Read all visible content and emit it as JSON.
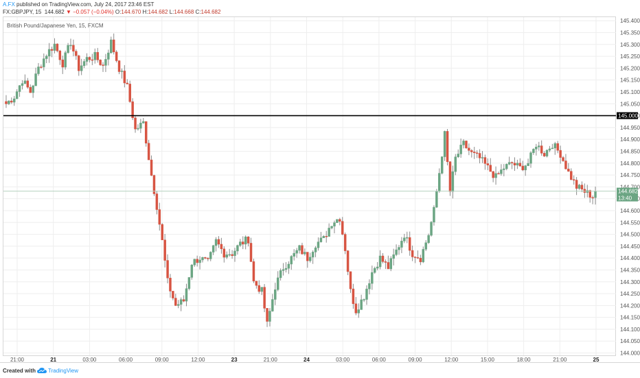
{
  "header": {
    "user": "A.FX",
    "published": "published on TradingView.com, July 24, 2017 23:46 EST",
    "symbol": "FX:GBPJPY, 15",
    "last": "144.682",
    "change": "▼ −0.057 (−0.04%)",
    "o_label": "O:",
    "o_value": "144.670",
    "h_label": "H:",
    "h_value": "144.682",
    "l_label": "L:",
    "l_value": "144.668",
    "c_label": "C:",
    "c_value": "144.682"
  },
  "chart_title": "British Pound/Japanese Yen, 15, FXCM",
  "footer": {
    "created": "Created with",
    "brand": "TradingView",
    "logo_icon": "tradingview-cloud-icon"
  },
  "colors": {
    "up": "#6ba583",
    "down": "#d75442",
    "wick": "#8a8a8a",
    "grid": "#eeeeee",
    "level_line": "#000000",
    "price_line": "#b5d1bf",
    "price_label": "#6ba583"
  },
  "chart_data": {
    "type": "candlestick",
    "symbol": "GBPJPY",
    "timeframe": "15",
    "x_tick_labels": [
      "21:00",
      "21",
      "03:00",
      "06:00",
      "09:00",
      "12:00",
      "23",
      "21:00",
      "24",
      "03:00",
      "06:00",
      "09:00",
      "12:00",
      "15:00",
      "18:00",
      "21:00",
      "25"
    ],
    "x_bold_labels": [
      "21",
      "23",
      "24",
      "25"
    ],
    "y_ticks": [
      "145.400",
      "145.350",
      "145.300",
      "145.250",
      "145.200",
      "145.150",
      "145.100",
      "145.050",
      "145.000",
      "144.950",
      "144.900",
      "144.850",
      "144.800",
      "144.750",
      "144.700",
      "144.650",
      "144.600",
      "144.550",
      "144.500",
      "144.450",
      "144.400",
      "144.350",
      "144.300",
      "144.250",
      "144.200",
      "144.150",
      "144.100",
      "144.050",
      "144.000"
    ],
    "ylim": [
      143.99,
      145.415
    ],
    "horizontal_level": {
      "value": 145.0,
      "label": "145.000"
    },
    "last_price": {
      "value": 144.682,
      "label": "144.682",
      "countdown": "13:40"
    },
    "close_path": [
      [
        0,
        145.05
      ],
      [
        3,
        145.08
      ],
      [
        6,
        145.15
      ],
      [
        9,
        145.1
      ],
      [
        12,
        145.2
      ],
      [
        15,
        145.26
      ],
      [
        18,
        145.3
      ],
      [
        21,
        145.22
      ],
      [
        24,
        145.31
      ],
      [
        27,
        145.2
      ],
      [
        30,
        145.24
      ],
      [
        33,
        145.25
      ],
      [
        36,
        145.21
      ],
      [
        39,
        145.31
      ],
      [
        42,
        145.2
      ],
      [
        45,
        145.12
      ],
      [
        48,
        144.94
      ],
      [
        51,
        144.97
      ],
      [
        54,
        144.75
      ],
      [
        56,
        144.62
      ],
      [
        58,
        144.47
      ],
      [
        60,
        144.3
      ],
      [
        63,
        144.2
      ],
      [
        66,
        144.22
      ],
      [
        69,
        144.38
      ],
      [
        72,
        144.4
      ],
      [
        75,
        144.38
      ],
      [
        78,
        144.47
      ],
      [
        81,
        144.42
      ],
      [
        84,
        144.42
      ],
      [
        87,
        144.46
      ],
      [
        90,
        144.48
      ],
      [
        92,
        144.3
      ],
      [
        95,
        144.26
      ],
      [
        97,
        144.12
      ],
      [
        100,
        144.28
      ],
      [
        103,
        144.36
      ],
      [
        106,
        144.4
      ],
      [
        109,
        144.44
      ],
      [
        112,
        144.4
      ],
      [
        115,
        144.46
      ],
      [
        118,
        144.48
      ],
      [
        121,
        144.55
      ],
      [
        124,
        144.57
      ],
      [
        126,
        144.44
      ],
      [
        128,
        144.26
      ],
      [
        130,
        144.18
      ],
      [
        133,
        144.24
      ],
      [
        136,
        144.34
      ],
      [
        139,
        144.4
      ],
      [
        142,
        144.36
      ],
      [
        145,
        144.43
      ],
      [
        148,
        144.5
      ],
      [
        151,
        144.42
      ],
      [
        154,
        144.4
      ],
      [
        157,
        144.5
      ],
      [
        159,
        144.6
      ],
      [
        161,
        144.76
      ],
      [
        163,
        144.92
      ],
      [
        165,
        144.68
      ],
      [
        167,
        144.82
      ],
      [
        170,
        144.88
      ],
      [
        173,
        144.84
      ],
      [
        176,
        144.82
      ],
      [
        179,
        144.78
      ],
      [
        182,
        144.74
      ],
      [
        185,
        144.78
      ],
      [
        188,
        144.8
      ],
      [
        191,
        144.78
      ],
      [
        194,
        144.8
      ],
      [
        197,
        144.88
      ],
      [
        200,
        144.84
      ],
      [
        203,
        144.88
      ],
      [
        206,
        144.84
      ],
      [
        209,
        144.76
      ],
      [
        212,
        144.7
      ],
      [
        215,
        144.68
      ],
      [
        218,
        144.66
      ],
      [
        219,
        144.682
      ]
    ]
  }
}
